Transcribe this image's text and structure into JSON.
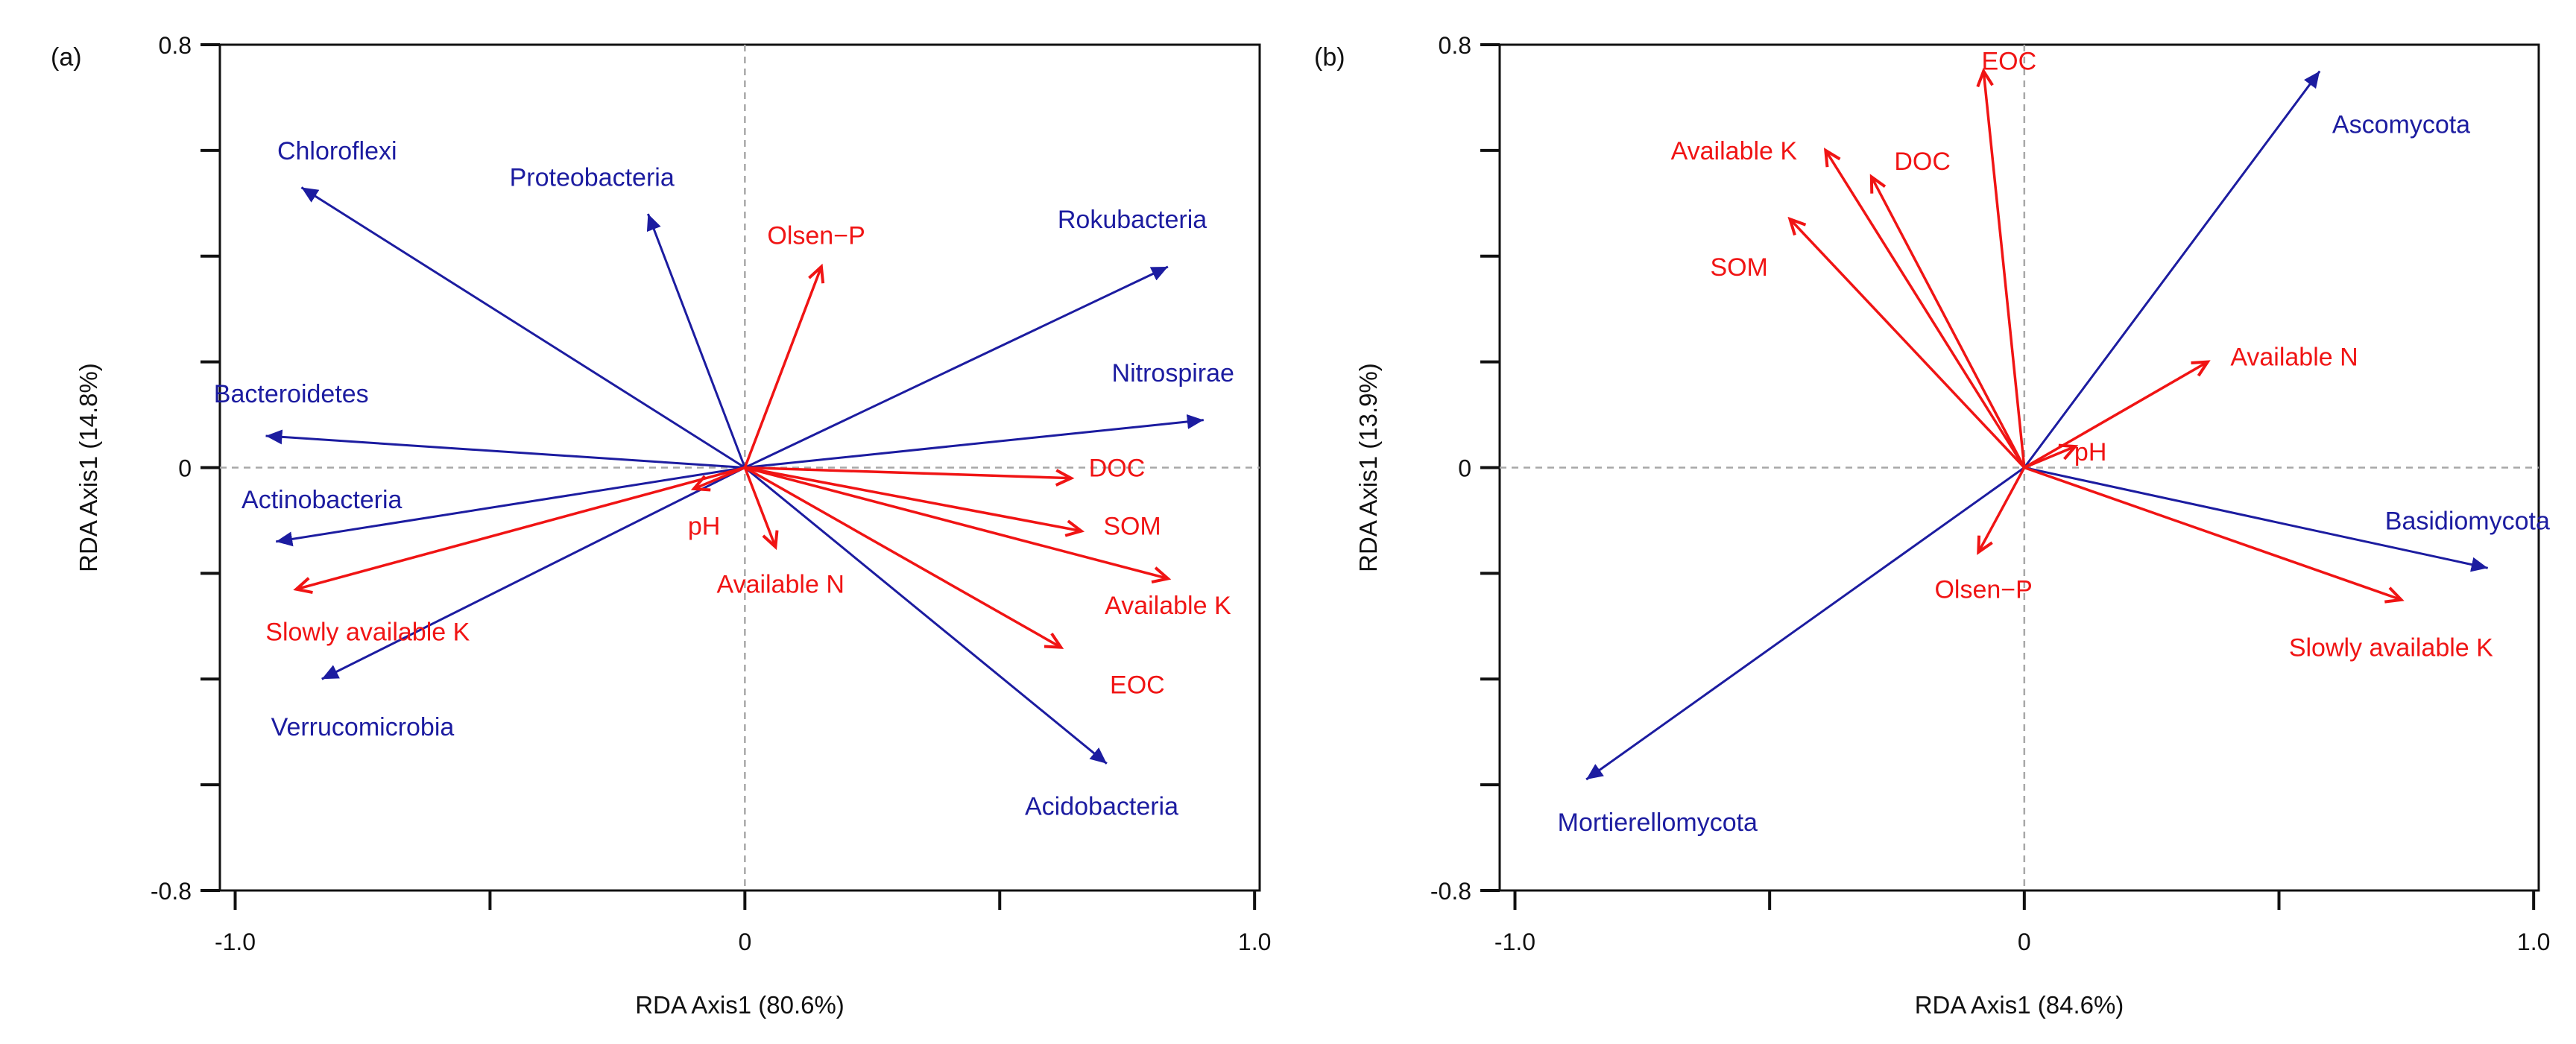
{
  "colors": {
    "species": "#1c1ca0",
    "environment": "#f01414",
    "axis": "#111111",
    "zero_line": "#a8a8a8"
  },
  "chart_data": [
    {
      "type": "scatter",
      "panel_label": "(a)",
      "xlabel": "RDA Axis1 (80.6%)",
      "ylabel": "RDA Axis1 (14.8%)",
      "xlim": [
        -1.03,
        1.01
      ],
      "ylim": [
        -0.8,
        0.8
      ],
      "x_ticks": [
        -1.0,
        -0.5,
        0,
        0.5,
        1.0
      ],
      "x_tick_labels": [
        "-1.0",
        "",
        "0",
        "",
        "1.0"
      ],
      "y_ticks": [
        -0.8,
        -0.6,
        -0.4,
        -0.2,
        0,
        0.2,
        0.4,
        0.6,
        0.8
      ],
      "y_tick_labels": [
        "-0.8",
        "",
        "",
        "",
        "0",
        "",
        "",
        "",
        "0.8"
      ],
      "zero_lines": true,
      "species": [
        {
          "label": "Chloroflexi",
          "x": -0.87,
          "y": 0.53,
          "lx": -0.8,
          "ly": 0.6
        },
        {
          "label": "Proteobacteria",
          "x": -0.19,
          "y": 0.48,
          "lx": -0.3,
          "ly": 0.55
        },
        {
          "label": "Rokubacteria",
          "x": 0.83,
          "y": 0.38,
          "lx": 0.76,
          "ly": 0.47
        },
        {
          "label": "Bacteroidetes",
          "x": -0.94,
          "y": 0.06,
          "lx": -0.89,
          "ly": 0.14
        },
        {
          "label": "Nitrospirae",
          "x": 0.9,
          "y": 0.09,
          "lx": 0.84,
          "ly": 0.18
        },
        {
          "label": "Actinobacteria",
          "x": -0.92,
          "y": -0.14,
          "lx": -0.83,
          "ly": -0.06
        },
        {
          "label": "Verrucomicrobia",
          "x": -0.83,
          "y": -0.4,
          "lx": -0.75,
          "ly": -0.49
        },
        {
          "label": "Acidobacteria",
          "x": 0.71,
          "y": -0.56,
          "lx": 0.7,
          "ly": -0.64
        }
      ],
      "environment": [
        {
          "label": "Olsen−P",
          "x": 0.15,
          "y": 0.38,
          "lx": 0.14,
          "ly": 0.44
        },
        {
          "label": "DOC",
          "x": 0.64,
          "y": -0.02,
          "lx": 0.73,
          "ly": 0.0
        },
        {
          "label": "SOM",
          "x": 0.66,
          "y": -0.12,
          "lx": 0.76,
          "ly": -0.11
        },
        {
          "label": "Available K",
          "x": 0.83,
          "y": -0.21,
          "lx": 0.83,
          "ly": -0.26
        },
        {
          "label": "EOC",
          "x": 0.62,
          "y": -0.34,
          "lx": 0.77,
          "ly": -0.41
        },
        {
          "label": "pH",
          "x": -0.1,
          "y": -0.04,
          "lx": -0.08,
          "ly": -0.11
        },
        {
          "label": "Available N",
          "x": 0.06,
          "y": -0.15,
          "lx": 0.07,
          "ly": -0.22
        },
        {
          "label": "Slowly available K",
          "x": -0.88,
          "y": -0.23,
          "lx": -0.74,
          "ly": -0.31
        }
      ]
    },
    {
      "type": "scatter",
      "panel_label": "(b)",
      "xlabel": "RDA Axis1 (84.6%)",
      "ylabel": "RDA Axis1 (13.9%)",
      "xlim": [
        -1.03,
        1.01
      ],
      "ylim": [
        -0.8,
        0.8
      ],
      "x_ticks": [
        -1.0,
        -0.5,
        0,
        0.5,
        1.0
      ],
      "x_tick_labels": [
        "-1.0",
        "",
        "0",
        "",
        "1.0"
      ],
      "y_ticks": [
        -0.8,
        -0.6,
        -0.4,
        -0.2,
        0,
        0.2,
        0.4,
        0.6,
        0.8
      ],
      "y_tick_labels": [
        "-0.8",
        "",
        "",
        "",
        "0",
        "",
        "",
        "",
        "0.8"
      ],
      "zero_lines": true,
      "species": [
        {
          "label": "Ascomycota",
          "x": 0.58,
          "y": 0.75,
          "lx": 0.74,
          "ly": 0.65
        },
        {
          "label": "Basidiomycota",
          "x": 0.91,
          "y": -0.19,
          "lx": 0.87,
          "ly": -0.1
        },
        {
          "label": "Mortierellomycota",
          "x": -0.86,
          "y": -0.59,
          "lx": -0.72,
          "ly": -0.67
        }
      ],
      "environment": [
        {
          "label": "EOC",
          "x": -0.08,
          "y": 0.75,
          "lx": -0.03,
          "ly": 0.77
        },
        {
          "label": "Available K",
          "x": -0.39,
          "y": 0.6,
          "lx": -0.57,
          "ly": 0.6
        },
        {
          "label": "DOC",
          "x": -0.3,
          "y": 0.55,
          "lx": -0.2,
          "ly": 0.58
        },
        {
          "label": "SOM",
          "x": -0.46,
          "y": 0.47,
          "lx": -0.56,
          "ly": 0.38
        },
        {
          "label": "Available N",
          "x": 0.36,
          "y": 0.2,
          "lx": 0.53,
          "ly": 0.21
        },
        {
          "label": "pH",
          "x": 0.1,
          "y": 0.04,
          "lx": 0.13,
          "ly": 0.03
        },
        {
          "label": "Olsen−P",
          "x": -0.09,
          "y": -0.16,
          "lx": -0.08,
          "ly": -0.23
        },
        {
          "label": "Slowly available K",
          "x": 0.74,
          "y": -0.25,
          "lx": 0.72,
          "ly": -0.34
        }
      ]
    }
  ]
}
